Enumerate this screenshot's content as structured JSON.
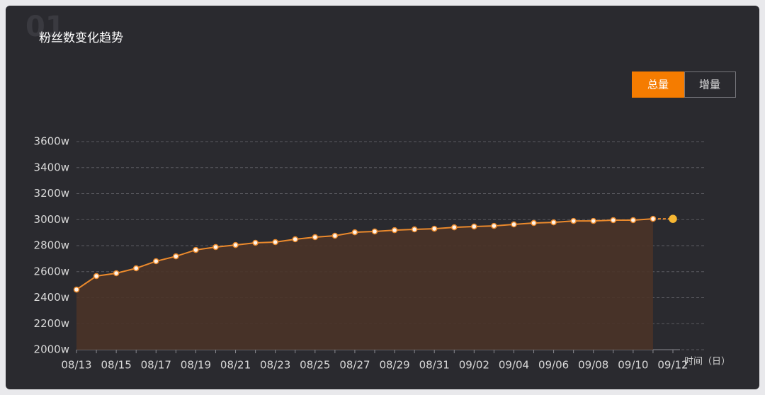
{
  "watermark": "01",
  "buttons": [
    "总量",
    "增量"
  ],
  "chart_data": {
    "type": "line",
    "title": "粉丝数变化趋势",
    "x_label": "时间（日）",
    "categories": [
      "08/13",
      null,
      "08/15",
      null,
      "08/17",
      null,
      "08/19",
      null,
      "08/21",
      null,
      "08/23",
      null,
      "08/25",
      null,
      "08/27",
      null,
      "08/29",
      null,
      "08/31",
      null,
      "09/02",
      null,
      "09/04",
      null,
      "09/06",
      null,
      "09/08",
      null,
      "09/10",
      null,
      "09/12"
    ],
    "values": [
      2462,
      2566,
      2588,
      2626,
      2680,
      2718,
      2767,
      2789,
      2805,
      2822,
      2827,
      2849,
      2865,
      2876,
      2903,
      2909,
      2919,
      2925,
      2930,
      2941,
      2947,
      2952,
      2963,
      2974,
      2979,
      2990,
      2990,
      2996,
      2996,
      3006,
      3006
    ],
    "color": "#ec8a2c",
    "ylim": [
      2000,
      3600
    ],
    "yticks": [
      {
        "value": 2000,
        "label": "2000w"
      },
      {
        "value": 2200,
        "label": "2200w"
      },
      {
        "value": 2400,
        "label": "2400w"
      },
      {
        "value": 2600,
        "label": "2600w"
      },
      {
        "value": 2800,
        "label": "2800w"
      },
      {
        "value": 3000,
        "label": "3000w"
      },
      {
        "value": 3200,
        "label": "3200w"
      },
      {
        "value": 3400,
        "label": "3400w"
      },
      {
        "value": 3600,
        "label": "3600w"
      }
    ],
    "grid": true
  }
}
